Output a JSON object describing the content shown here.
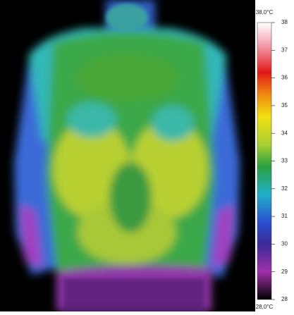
{
  "scale": {
    "max_label": "38,0°C",
    "min_label": "28,0°C",
    "min": 28,
    "max": 38,
    "ticks": [
      38,
      37,
      36,
      35,
      34,
      33,
      32,
      31,
      30,
      29,
      28
    ]
  }
}
